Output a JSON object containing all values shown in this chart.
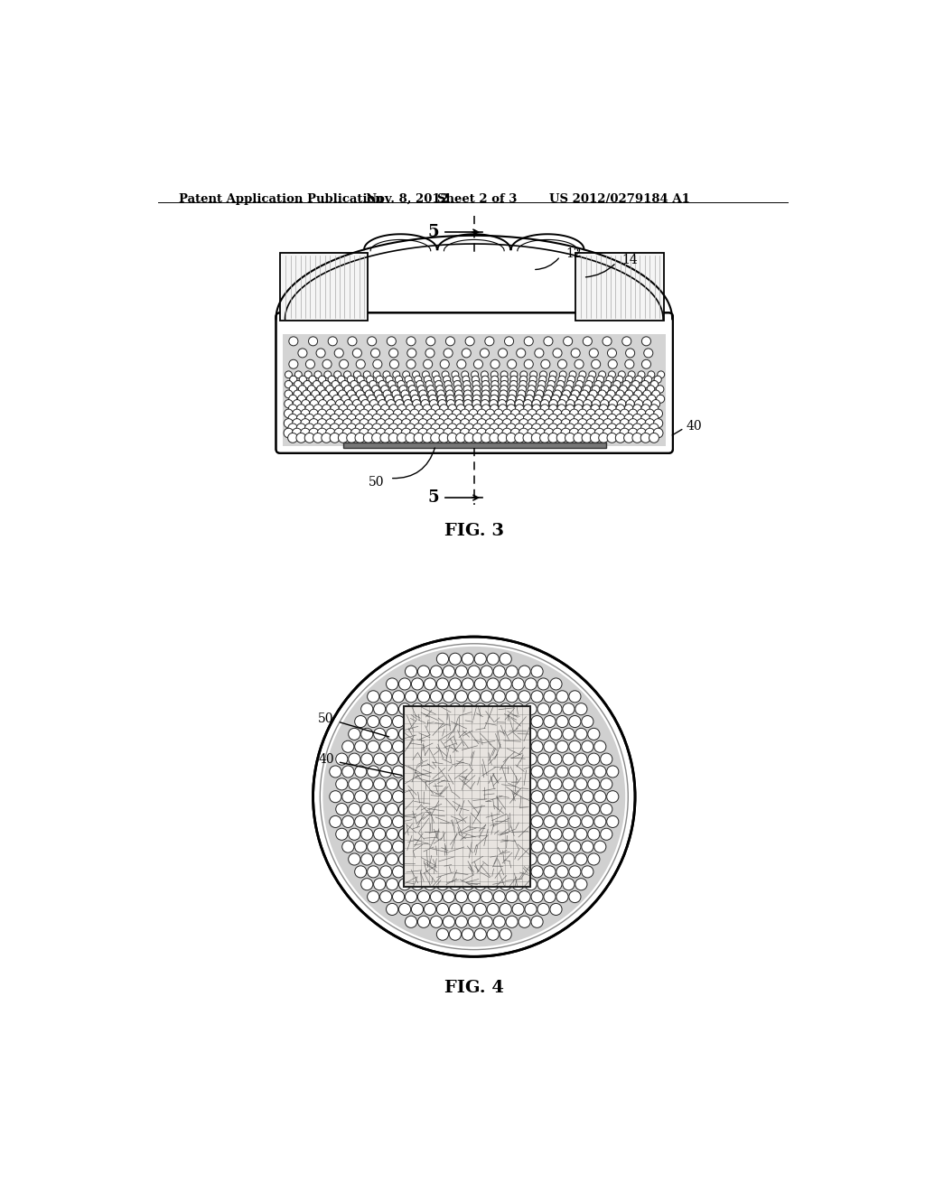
{
  "bg_color": "#ffffff",
  "header_text": "Patent Application Publication",
  "header_date": "Nov. 8, 2012",
  "header_sheet": "Sheet 2 of 3",
  "header_patent": "US 2012/0279184 A1",
  "fig3_label": "FIG. 3",
  "fig4_label": "FIG. 4",
  "label_5_top": "5",
  "label_5_bottom": "5",
  "label_12": "12",
  "label_14": "14",
  "label_40": "40",
  "label_50": "50",
  "label_40_fig4": "40",
  "label_50_fig4": "50"
}
